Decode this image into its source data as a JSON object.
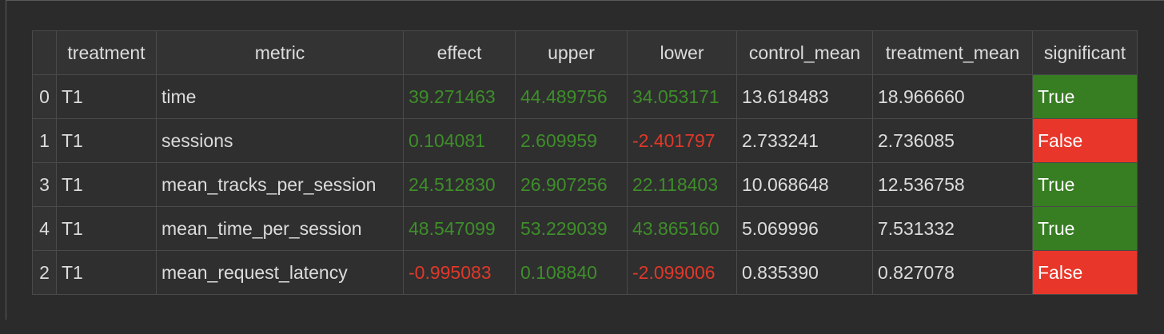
{
  "colors": {
    "positive": "#3e8e2a",
    "negative": "#e0382a",
    "true_bg": "#377d22",
    "false_bg": "#e8372a"
  },
  "table": {
    "columns": [
      "",
      "treatment",
      "metric",
      "effect",
      "upper",
      "lower",
      "control_mean",
      "treatment_mean",
      "significant"
    ],
    "rows": [
      {
        "index": "0",
        "treatment": "T1",
        "metric": "time",
        "effect": "39.271463",
        "upper": "44.489756",
        "lower": "34.053171",
        "control_mean": "13.618483",
        "treatment_mean": "18.966660",
        "significant": "True"
      },
      {
        "index": "1",
        "treatment": "T1",
        "metric": "sessions",
        "effect": "0.104081",
        "upper": "2.609959",
        "lower": "-2.401797",
        "control_mean": "2.733241",
        "treatment_mean": "2.736085",
        "significant": "False"
      },
      {
        "index": "3",
        "treatment": "T1",
        "metric": "mean_tracks_per_session",
        "effect": "24.512830",
        "upper": "26.907256",
        "lower": "22.118403",
        "control_mean": "10.068648",
        "treatment_mean": "12.536758",
        "significant": "True"
      },
      {
        "index": "4",
        "treatment": "T1",
        "metric": "mean_time_per_session",
        "effect": "48.547099",
        "upper": "53.229039",
        "lower": "43.865160",
        "control_mean": "5.069996",
        "treatment_mean": "7.531332",
        "significant": "True"
      },
      {
        "index": "2",
        "treatment": "T1",
        "metric": "mean_request_latency",
        "effect": "-0.995083",
        "upper": "0.108840",
        "lower": "-2.099006",
        "control_mean": "0.835390",
        "treatment_mean": "0.827078",
        "significant": "False"
      }
    ]
  }
}
